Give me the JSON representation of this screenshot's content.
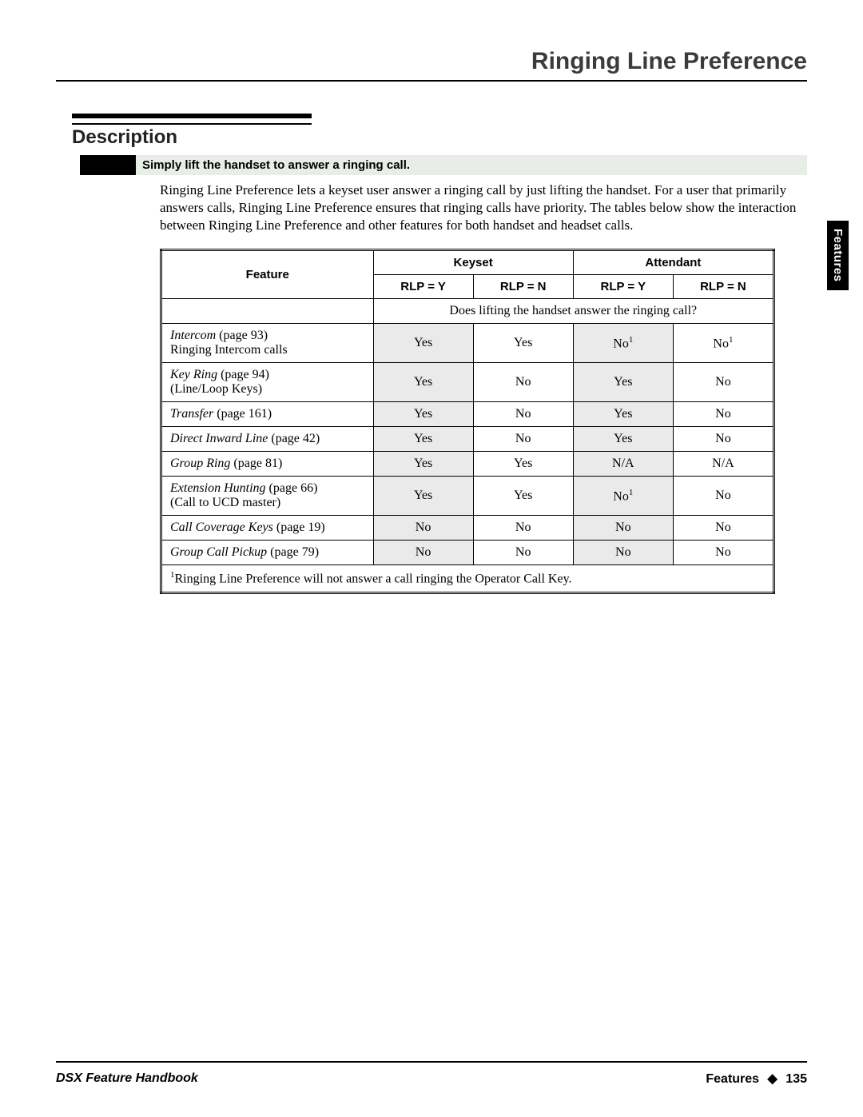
{
  "header": {
    "title": "Ringing Line Preference"
  },
  "sideTab": "Features",
  "description": {
    "heading": "Description",
    "callout": "Simply lift the handset to answer a ringing call.",
    "body": "Ringing Line Preference lets a keyset user answer a ringing call by just lifting the handset. For a user that primarily answers calls, Ringing Line Preference ensures that ringing calls have priority. The tables below show the interaction between Ringing Line Preference and other features for both handset and headset calls."
  },
  "table": {
    "featureHeader": "Feature",
    "groupHeaders": {
      "keyset": "Keyset",
      "attendant": "Attendant"
    },
    "colHeaders": {
      "rlpY": "RLP = Y",
      "rlpN": "RLP = N"
    },
    "subHeader": "Does lifting the handset answer the ringing call?",
    "rows": [
      {
        "name": "Intercom",
        "page": "(page 93)",
        "sub": "Ringing Intercom calls",
        "keyset_y": "Yes",
        "keyset_n": "Yes",
        "attendant_y": "No",
        "attendant_y_sup": "1",
        "attendant_n": "No",
        "attendant_n_sup": "1"
      },
      {
        "name": "Key Ring",
        "page": "(page 94)",
        "sub": "(Line/Loop Keys)",
        "keyset_y": "Yes",
        "keyset_n": "No",
        "attendant_y": "Yes",
        "attendant_n": "No"
      },
      {
        "name": "Transfer",
        "page": "(page 161)",
        "sub": "",
        "keyset_y": "Yes",
        "keyset_n": "No",
        "attendant_y": "Yes",
        "attendant_n": "No"
      },
      {
        "name": "Direct Inward Line",
        "page": "(page 42)",
        "sub": "",
        "keyset_y": "Yes",
        "keyset_n": "No",
        "attendant_y": "Yes",
        "attendant_n": "No"
      },
      {
        "name": "Group Ring",
        "page": "(page 81)",
        "sub": "",
        "keyset_y": "Yes",
        "keyset_n": "Yes",
        "attendant_y": "N/A",
        "attendant_n": "N/A"
      },
      {
        "name": "Extension Hunting",
        "page": "(page 66)",
        "sub": "(Call to UCD master)",
        "keyset_y": "Yes",
        "keyset_n": "Yes",
        "attendant_y": "No",
        "attendant_y_sup": "1",
        "attendant_n": "No"
      },
      {
        "name": "Call Coverage Keys",
        "page": "(page 19)",
        "sub": "",
        "keyset_y": "No",
        "keyset_n": "No",
        "attendant_y": "No",
        "attendant_n": "No"
      },
      {
        "name": "Group Call Pickup",
        "page": "(page 79)",
        "sub": "",
        "keyset_y": "No",
        "keyset_n": "No",
        "attendant_y": "No",
        "attendant_n": "No"
      }
    ],
    "footnote": "Ringing Line Preference will not answer a call ringing the Operator Call Key.",
    "footnoteMark": "1"
  },
  "footer": {
    "left": "DSX Feature Handbook",
    "rightLabel": "Features",
    "pageNum": "135",
    "diamond": "◆"
  },
  "style": {
    "background": "#ffffff",
    "shaded": "#eaeaea",
    "calloutBg": "#e9ede7",
    "ruleColor": "#000000",
    "titleFontSize": 30,
    "headingFontSize": 24,
    "bodyFontSize": 17,
    "tableFontSize": 16
  }
}
